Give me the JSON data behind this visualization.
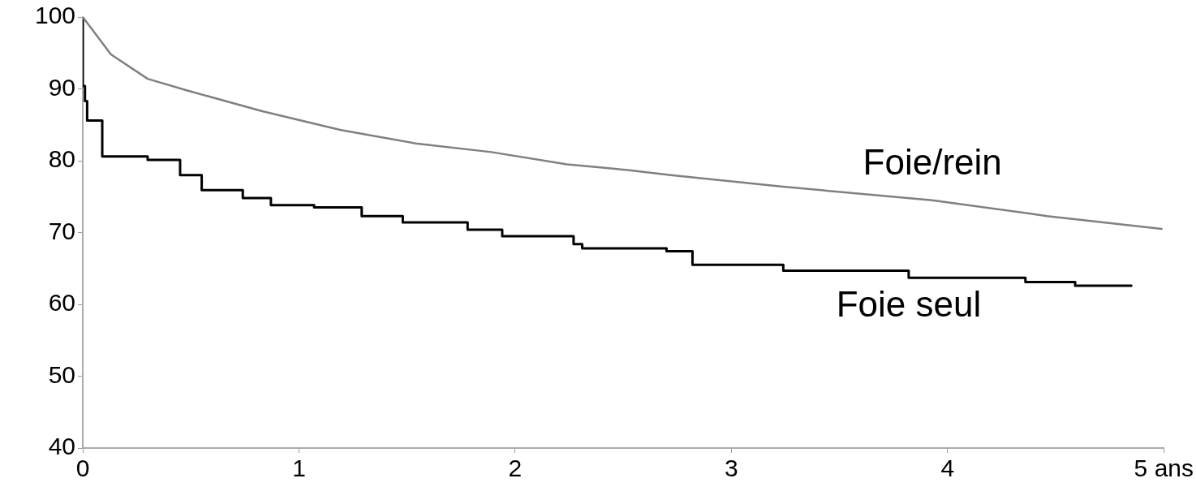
{
  "chart_data": {
    "type": "line",
    "xlim": [
      0,
      5
    ],
    "xticks": [
      0,
      1,
      2,
      3,
      4,
      {
        "value": 5,
        "label": "5 ans"
      }
    ],
    "ylim": [
      40,
      100
    ],
    "yticks": [
      40,
      50,
      60,
      70,
      80,
      90,
      100
    ],
    "grid": false,
    "legend": false,
    "marker": "none",
    "series": [
      {
        "name": "Foie/rein",
        "color": "#808080",
        "type": "line",
        "x": [
          0,
          0.13,
          0.3,
          0.48,
          0.83,
          1.19,
          1.54,
          1.89,
          2.24,
          2.52,
          2.72,
          3.23,
          3.93,
          4.46,
          4.99
        ],
        "values": [
          100,
          94.8,
          91.4,
          89.8,
          86.9,
          84.3,
          82.4,
          81.2,
          79.5,
          78.7,
          78.0,
          76.4,
          74.5,
          72.3,
          70.5
        ]
      },
      {
        "name": "Foie seul",
        "color": "#000000",
        "type": "step",
        "x": [
          0,
          0.01,
          0.02,
          0.09,
          0.3,
          0.45,
          0.55,
          0.74,
          0.87,
          1.07,
          1.29,
          1.48,
          1.78,
          1.94,
          2.27,
          2.31,
          2.7,
          2.82,
          3.24,
          3.82,
          4.36,
          4.59,
          4.85
        ],
        "values": [
          100,
          90.4,
          88.3,
          85.6,
          80.6,
          80.1,
          78.0,
          75.9,
          74.8,
          73.8,
          73.5,
          72.3,
          71.4,
          70.4,
          69.5,
          68.4,
          67.8,
          67.4,
          65.5,
          64.7,
          63.7,
          63.1,
          62.6
        ]
      }
    ]
  }
}
